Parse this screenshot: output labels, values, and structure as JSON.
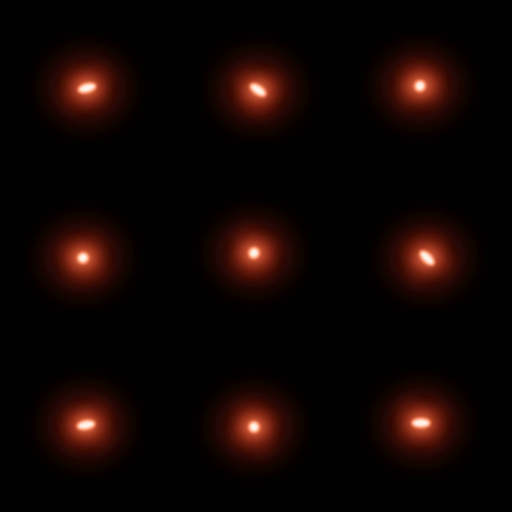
{
  "image": {
    "background_color": "#000000",
    "palette": {
      "halo": "#7a1e10",
      "mid": "#d24a2a",
      "glow": "#ff8a5c",
      "core": "#fff4ea"
    },
    "grid": {
      "rows": 3,
      "cols": 3
    },
    "sources": [
      {
        "name": "source-r1-c1",
        "core_shape": "elongated",
        "orientation_deg": -15
      },
      {
        "name": "source-r1-c2",
        "core_shape": "elongated",
        "orientation_deg": 35
      },
      {
        "name": "source-r1-c3",
        "core_shape": "compact",
        "orientation_deg": -60
      },
      {
        "name": "source-r2-c1",
        "core_shape": "compact",
        "orientation_deg": -20
      },
      {
        "name": "source-r2-c2",
        "core_shape": "compact",
        "orientation_deg": -65
      },
      {
        "name": "source-r2-c3",
        "core_shape": "elongated",
        "orientation_deg": 45
      },
      {
        "name": "source-r3-c1",
        "core_shape": "elongated",
        "orientation_deg": -10
      },
      {
        "name": "source-r3-c2",
        "core_shape": "compact",
        "orientation_deg": 80
      },
      {
        "name": "source-r3-c3",
        "core_shape": "elongated",
        "orientation_deg": 0
      }
    ]
  }
}
